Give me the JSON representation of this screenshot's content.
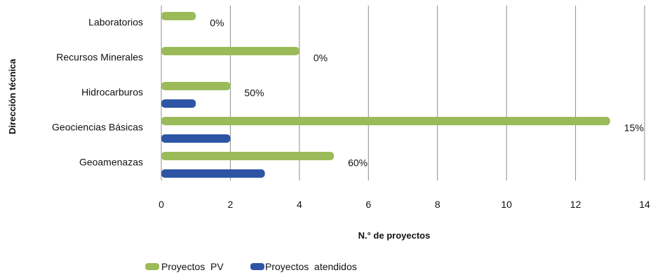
{
  "chart_data": {
    "type": "bar",
    "orientation": "horizontal",
    "categories": [
      "Laboratorios",
      "Recursos Minerales",
      "Hidrocarburos",
      "Geociencias Básicas",
      "Geoamenazas"
    ],
    "series": [
      {
        "name": "Proyectos  PV",
        "values": [
          1,
          4,
          2,
          13,
          5
        ],
        "color": "#9bbb59"
      },
      {
        "name": "Proyectos  atendidos",
        "values": [
          0,
          0,
          1,
          2,
          3
        ],
        "color": "#2e55a5"
      }
    ],
    "annotations": [
      "0%",
      "0%",
      "50%",
      "15%",
      "60%"
    ],
    "xlabel": "N.° de proyectos",
    "ylabel": "Dirección técnica",
    "xlim": [
      0,
      14
    ],
    "xticks": [
      "0",
      "2",
      "4",
      "6",
      "8",
      "10",
      "12",
      "14"
    ],
    "grid": "vertical",
    "legend": "bottom-left"
  }
}
